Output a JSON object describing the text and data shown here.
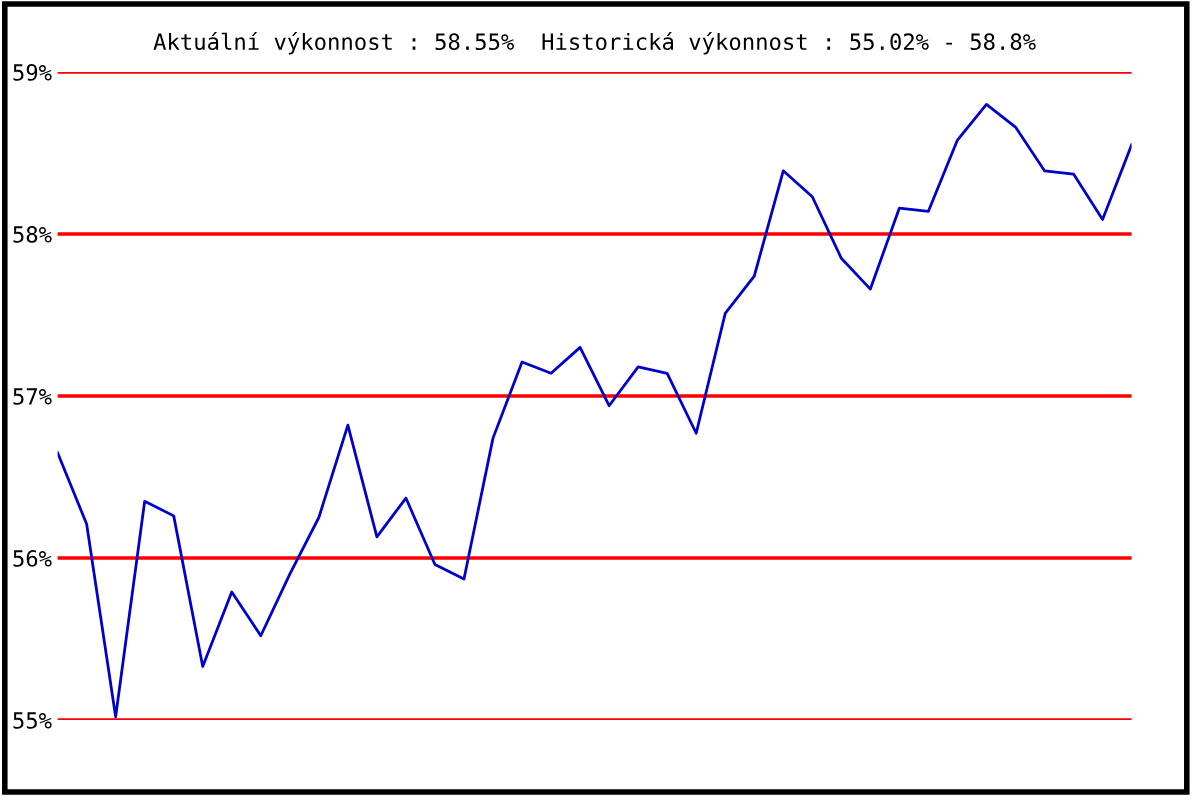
{
  "chart_data": {
    "type": "line",
    "title": "Aktuální výkonnost : 58.55%  Historická výkonnost : 55.02% - 58.8%",
    "categories": [
      null,
      null,
      null,
      null,
      null,
      null,
      null,
      null,
      null,
      null,
      null,
      null,
      null,
      null,
      null,
      null,
      null,
      null,
      null,
      null,
      null,
      null,
      null,
      null,
      null,
      null,
      null,
      null,
      null,
      null,
      null,
      null,
      null,
      null,
      null,
      null,
      null,
      null
    ],
    "series": [
      {
        "color": "#0000cc",
        "values": [
          56.65,
          56.21,
          55.02,
          56.35,
          56.26,
          55.33,
          55.79,
          55.52,
          55.9,
          56.25,
          56.82,
          56.13,
          56.37,
          55.96,
          55.87,
          56.74,
          57.21,
          57.14,
          57.3,
          56.94,
          57.18,
          57.14,
          56.77,
          57.51,
          57.74,
          58.39,
          58.23,
          57.85,
          57.66,
          58.16,
          58.14,
          58.58,
          58.8,
          58.66,
          58.39,
          58.37,
          58.09,
          58.55
        ]
      }
    ],
    "ylim": [
      55,
      59
    ],
    "yticks": [
      {
        "value": 55,
        "label": "55%"
      },
      {
        "value": 56,
        "label": "56%"
      },
      {
        "value": 57,
        "label": "57%"
      },
      {
        "value": 58,
        "label": "58%"
      },
      {
        "value": 59,
        "label": "59%"
      }
    ],
    "grid": "y",
    "marker": "none",
    "line_style": "solid"
  }
}
